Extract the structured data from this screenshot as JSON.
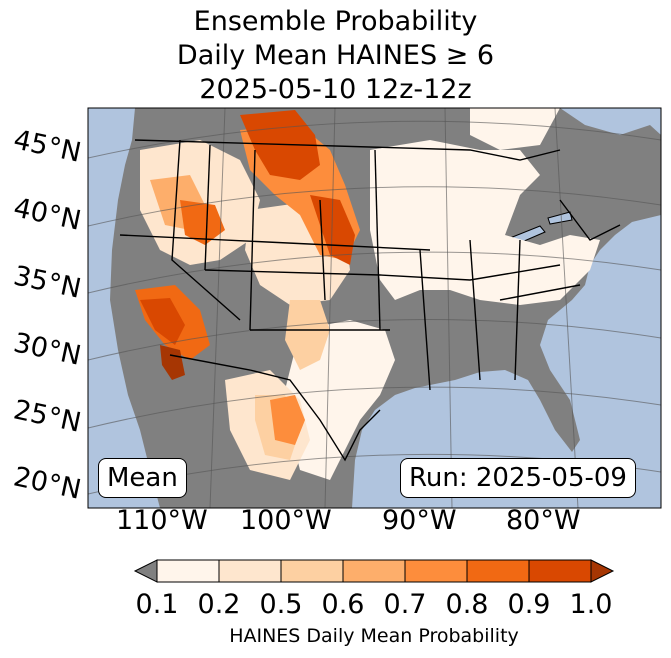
{
  "title": {
    "line1": "Ensemble Probability",
    "line2": "Daily Mean HAINES ≥ 6",
    "line3": "2025-05-10 12z-12z"
  },
  "map": {
    "latitude_labels": [
      "45°N",
      "40°N",
      "35°N",
      "30°N",
      "25°N",
      "20°N"
    ],
    "longitude_labels": [
      "110°W",
      "100°W",
      "90°W",
      "80°W"
    ],
    "mean_label": "Mean",
    "run_label": "Run: 2025-05-09",
    "colors": {
      "ocean": "#b0c4de",
      "no_data": "#808080",
      "bins": [
        "#fff5eb",
        "#fee6ce",
        "#fdd0a2",
        "#fdae6b",
        "#fd8d3c",
        "#f16913",
        "#d94801",
        "#a63603"
      ]
    }
  },
  "colorbar": {
    "ticks": [
      "0.1",
      "0.2",
      "0.5",
      "0.6",
      "0.7",
      "0.8",
      "0.9",
      "1.0"
    ],
    "label": "HAINES Daily Mean Probability"
  }
}
